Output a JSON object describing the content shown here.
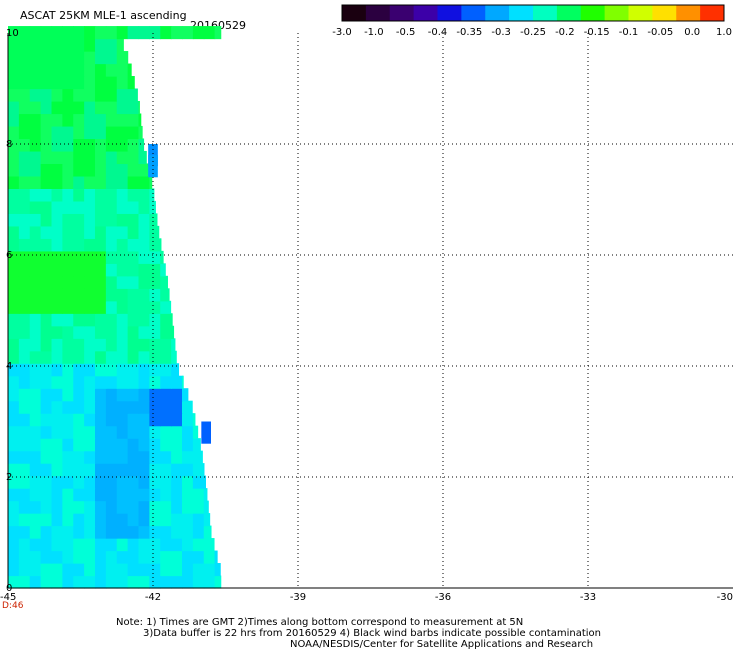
{
  "header": {
    "title": "ASCAT 25KM MLE-1 ascending",
    "date": "20160529"
  },
  "colorbar": {
    "colors": [
      "#1a0010",
      "#2b0040",
      "#3a0070",
      "#3c00a8",
      "#1010e0",
      "#0060ff",
      "#00a8ff",
      "#00e0ff",
      "#00ffc0",
      "#00ff60",
      "#20ff00",
      "#80ff00",
      "#d0ff00",
      "#ffe000",
      "#ff9000",
      "#ff3000"
    ],
    "labels": [
      "-3.0",
      "-1.0",
      "-0.5",
      "-0.4",
      "-0.35",
      "-0.3",
      "-0.25",
      "-0.2",
      "-0.15",
      "-0.1",
      "-0.05",
      "0.0",
      "1.0"
    ]
  },
  "chart_data": {
    "type": "heatmap",
    "title": "ASCAT 25KM MLE-1 ascending",
    "xlabel": "",
    "ylabel": "",
    "xlim": [
      -45,
      -30
    ],
    "ylim": [
      0,
      10
    ],
    "x_ticks": [
      "-45",
      "-42",
      "-39",
      "-36",
      "-33",
      "-30"
    ],
    "y_ticks": [
      "0",
      "2",
      "4",
      "6",
      "8",
      "10"
    ],
    "grid": true,
    "colorbar_range": [
      -3.0,
      1.0
    ],
    "swath_right_edge": [
      {
        "lat": 10.0,
        "lon": -42.7
      },
      {
        "lat": 9.5,
        "lon": -42.5
      },
      {
        "lat": 8.8,
        "lon": -42.3
      },
      {
        "lat": 8.0,
        "lon": -42.2
      },
      {
        "lat": 7.2,
        "lon": -42.0
      },
      {
        "lat": 6.5,
        "lon": -41.9
      },
      {
        "lat": 6.0,
        "lon": -41.8
      },
      {
        "lat": 5.5,
        "lon": -41.7
      },
      {
        "lat": 4.8,
        "lon": -41.6
      },
      {
        "lat": 4.0,
        "lon": -41.5
      },
      {
        "lat": 3.3,
        "lon": -41.2
      },
      {
        "lat": 2.5,
        "lon": -41.0
      },
      {
        "lat": 1.8,
        "lon": -40.9
      },
      {
        "lat": 1.0,
        "lon": -40.8
      },
      {
        "lat": 0.3,
        "lon": -40.6
      },
      {
        "lat": 0.0,
        "lon": -40.6
      }
    ],
    "value_regions": [
      {
        "name": "north",
        "lat_range": [
          7,
          10
        ],
        "value": -0.15
      },
      {
        "name": "central",
        "lat_range": [
          4,
          7
        ],
        "value": -0.2
      },
      {
        "name": "south",
        "lat_range": [
          0,
          4
        ],
        "value": -0.3
      }
    ]
  },
  "time_label": "D:46",
  "notes": {
    "line1": "Note: 1) Times are GMT 2)Times along bottom correspond to measurement at 5N",
    "line2": "3)Data buffer is 22 hrs from 20160529 4) Black wind barbs indicate possible contamination",
    "line3": "NOAA/NESDIS/Center for Satellite Applications and Research"
  }
}
